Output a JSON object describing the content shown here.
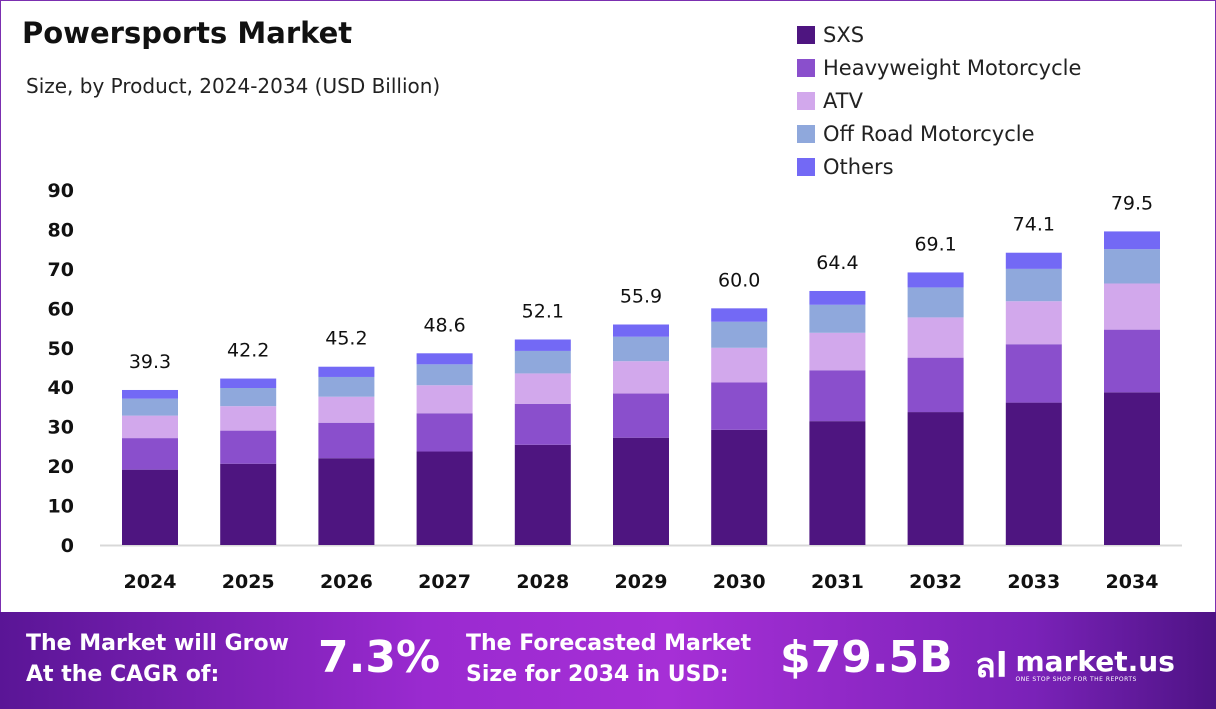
{
  "chart_data": {
    "type": "bar",
    "stacked": true,
    "title": "Powersports Market",
    "subtitle": "Size, by Product, 2024-2034 (USD Billion)",
    "categories": [
      "2024",
      "2025",
      "2026",
      "2027",
      "2028",
      "2029",
      "2030",
      "2031",
      "2032",
      "2033",
      "2034"
    ],
    "totals": [
      "39.3",
      "42.2",
      "45.2",
      "48.6",
      "52.1",
      "55.9",
      "60.0",
      "64.4",
      "69.1",
      "74.1",
      "79.5"
    ],
    "series": [
      {
        "name": "SXS",
        "color": "#4e1580",
        "values": [
          19.1,
          20.6,
          22.0,
          23.7,
          25.4,
          27.2,
          29.2,
          31.4,
          33.7,
          36.1,
          38.7
        ]
      },
      {
        "name": "Heavyweight Motorcycle",
        "color": "#8a4fcc",
        "values": [
          8.0,
          8.4,
          9.0,
          9.7,
          10.4,
          11.2,
          12.0,
          12.9,
          13.8,
          14.8,
          15.9
        ]
      },
      {
        "name": "ATV",
        "color": "#d2a8ec",
        "values": [
          5.7,
          6.2,
          6.6,
          7.1,
          7.7,
          8.2,
          8.8,
          9.5,
          10.2,
          10.9,
          11.7
        ]
      },
      {
        "name": "Off Road Motorcycle",
        "color": "#8fa8dc",
        "values": [
          4.3,
          4.6,
          5.0,
          5.3,
          5.7,
          6.2,
          6.6,
          7.1,
          7.6,
          8.2,
          8.7
        ]
      },
      {
        "name": "Others",
        "color": "#7369f5",
        "values": [
          2.2,
          2.4,
          2.6,
          2.8,
          2.9,
          3.1,
          3.4,
          3.5,
          3.8,
          4.1,
          4.5
        ]
      }
    ],
    "yticks": [
      "0",
      "10",
      "20",
      "30",
      "40",
      "50",
      "60",
      "70",
      "80",
      "90"
    ],
    "ylim": [
      0,
      90
    ],
    "grid": false,
    "legend_position": "top-right"
  },
  "footer": {
    "cagr_label_1": "The Market will Grow",
    "cagr_label_2": "At the CAGR of:",
    "cagr_value": "7.3%",
    "forecast_label_1": "The Forecasted Market",
    "forecast_label_2": "Size for 2034 in USD:",
    "forecast_value": "$79.5B",
    "logo_text": "market.us",
    "logo_tagline": "ONE STOP SHOP FOR THE REPORTS"
  }
}
